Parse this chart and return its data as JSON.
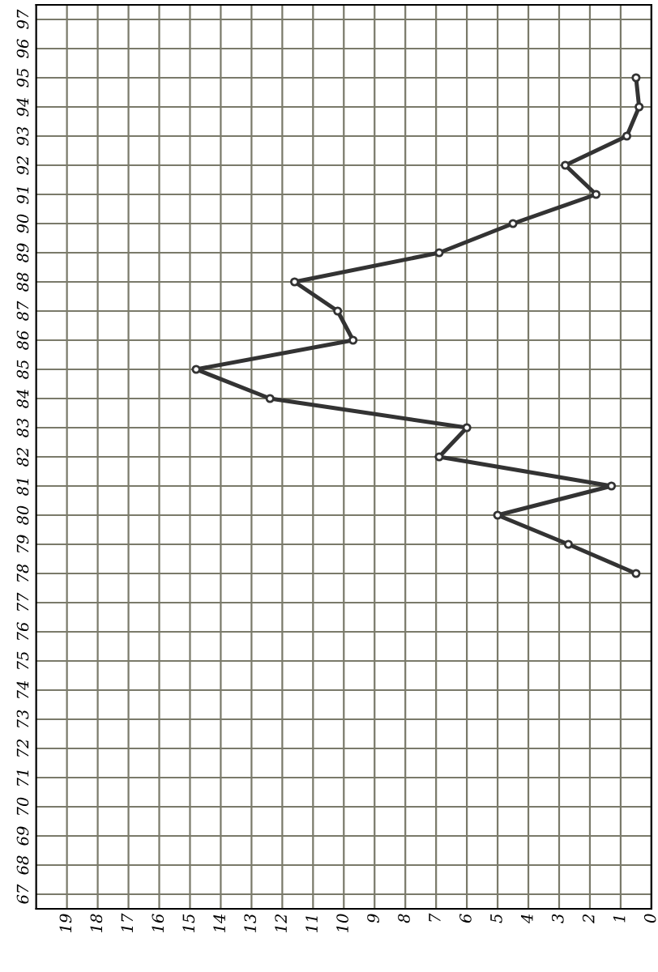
{
  "chart_data": {
    "type": "line",
    "orientation": "horizontal",
    "categories": [
      "97",
      "96",
      "95",
      "94",
      "93",
      "92",
      "91",
      "90",
      "89",
      "88",
      "87",
      "86",
      "85",
      "84",
      "83",
      "82",
      "81",
      "80",
      "79",
      "78",
      "77",
      "76",
      "75",
      "74",
      "73",
      "72",
      "71",
      "70",
      "69",
      "68",
      "67"
    ],
    "values": [
      null,
      null,
      0.5,
      0.4,
      0.8,
      2.8,
      1.8,
      4.5,
      6.9,
      11.6,
      10.2,
      9.7,
      14.8,
      12.4,
      6.0,
      6.9,
      1.3,
      5.0,
      2.7,
      0.5,
      null,
      null,
      null,
      null,
      null,
      null,
      null,
      null,
      null,
      null,
      null
    ],
    "color": "#333333",
    "xlim": [
      20,
      0
    ],
    "xticks": [
      19,
      18,
      17,
      16,
      15,
      14,
      13,
      12,
      11,
      10,
      9,
      8,
      7,
      6,
      5,
      4,
      3,
      2,
      1,
      0
    ],
    "grid": true,
    "marker": "circle",
    "line_style": "solid"
  }
}
